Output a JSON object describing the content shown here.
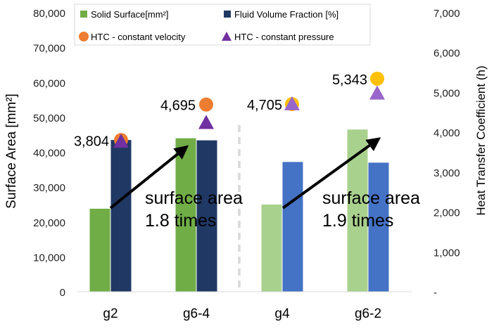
{
  "chart_data": {
    "type": "bar",
    "categories": [
      "g2",
      "g6-4",
      "g4",
      "g6-2"
    ],
    "ylabel": "Surface Area [mm²]",
    "y2label": "Heat Transfer Coefficient (h)",
    "ylim": [
      0,
      80000
    ],
    "y2lim": [
      0,
      7000
    ],
    "y_ticks": [
      0,
      10000,
      20000,
      30000,
      40000,
      50000,
      60000,
      70000,
      80000
    ],
    "y_tick_labels": [
      "0",
      "10,000",
      "20,000",
      "30,000",
      "40,000",
      "50,000",
      "60,000",
      "70,000",
      "80,000"
    ],
    "y2_ticks": [
      0,
      1000,
      2000,
      3000,
      4000,
      5000,
      6000,
      7000
    ],
    "y2_tick_labels": [
      "-",
      "1,000",
      "2,000",
      "3,000",
      "4,000",
      "5,000",
      "6,000",
      "7,000"
    ],
    "series": [
      {
        "name": "Solid Surface[mm²]",
        "type": "bar",
        "axis": "left",
        "values": [
          23800,
          44000,
          25000,
          46500
        ],
        "colors": [
          "#70ad47",
          "#70ad47",
          "#a9d18e",
          "#a9d18e"
        ],
        "legend_color": "#70ad47"
      },
      {
        "name": "Fluid Volume Fraction [%]",
        "type": "bar",
        "axis": "left",
        "values": [
          43500,
          43400,
          37200,
          37000
        ],
        "colors": [
          "#203864",
          "#203864",
          "#4472c4",
          "#4472c4"
        ],
        "legend_color": "#203864"
      },
      {
        "name": "HTC - constant velocity",
        "type": "marker",
        "marker": "circle",
        "axis": "right",
        "values": [
          3804,
          4695,
          4705,
          5343
        ],
        "colors": [
          "#ed7d31",
          "#ed7d31",
          "#ffc000",
          "#ffc000"
        ],
        "legend_color": "#ed7d31"
      },
      {
        "name": "HTC - constant pressure",
        "type": "marker",
        "marker": "triangle",
        "axis": "right",
        "values": [
          3770,
          4240,
          4710,
          4980
        ],
        "colors": [
          "#7030a0",
          "#7030a0",
          "#9966cc",
          "#9966cc"
        ],
        "legend_color": "#7030a0"
      }
    ],
    "data_labels": [
      {
        "text": "3,804",
        "category": "g2"
      },
      {
        "text": "4,695",
        "category": "g6-4"
      },
      {
        "text": "4,705",
        "category": "g4"
      },
      {
        "text": "5,343",
        "category": "g6-2"
      }
    ],
    "annotations": [
      {
        "line1": "surface area",
        "line2": "1.8 times",
        "from_category": "g2",
        "to_category": "g6-4",
        "from_value": 24000,
        "to_value": 41500
      },
      {
        "line1": "surface area",
        "line2": "1.9 times",
        "from_category": "g4",
        "to_category": "g6-2",
        "from_value": 24000,
        "to_value": 43800
      }
    ],
    "divider": {
      "between": [
        "g6-4",
        "g4"
      ],
      "style": "dashed",
      "color": "#d9d9d9"
    },
    "legend_position": "top"
  }
}
